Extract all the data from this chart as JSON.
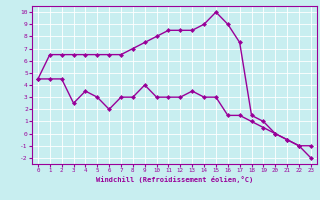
{
  "xlabel": "Windchill (Refroidissement éolien,°C)",
  "bg_color": "#c8eef0",
  "line_color": "#990099",
  "grid_color": "#ffffff",
  "text_color": "#990099",
  "xlim": [
    -0.5,
    23.5
  ],
  "ylim": [
    -2.5,
    10.5
  ],
  "xticks": [
    0,
    1,
    2,
    3,
    4,
    5,
    6,
    7,
    8,
    9,
    10,
    11,
    12,
    13,
    14,
    15,
    16,
    17,
    18,
    19,
    20,
    21,
    22,
    23
  ],
  "yticks": [
    -2,
    -1,
    0,
    1,
    2,
    3,
    4,
    5,
    6,
    7,
    8,
    9,
    10
  ],
  "line1_x": [
    0,
    1,
    2,
    3,
    4,
    5,
    6,
    7,
    8,
    9,
    10,
    11,
    12,
    13,
    14,
    15,
    16,
    17,
    18,
    19,
    20,
    21,
    22,
    23
  ],
  "line1_y": [
    4.5,
    6.5,
    6.5,
    6.5,
    6.5,
    6.5,
    6.5,
    6.5,
    7.0,
    7.5,
    8.0,
    8.5,
    8.5,
    8.5,
    9.0,
    10.0,
    9.0,
    7.5,
    1.5,
    1.0,
    0.0,
    -0.5,
    -1.0,
    -1.0
  ],
  "line2_x": [
    0,
    1,
    2,
    3,
    4,
    5,
    6,
    7,
    8,
    9,
    10,
    11,
    12,
    13,
    14,
    15,
    16,
    17,
    18,
    19,
    20,
    21,
    22,
    23
  ],
  "line2_y": [
    4.5,
    4.5,
    4.5,
    2.5,
    3.5,
    3.0,
    2.0,
    3.0,
    3.0,
    4.0,
    3.0,
    3.0,
    3.0,
    3.5,
    3.0,
    3.0,
    1.5,
    1.5,
    1.0,
    0.5,
    0.0,
    -0.5,
    -1.0,
    -2.0
  ],
  "marker": "D",
  "markersize": 2,
  "linewidth": 1.0
}
